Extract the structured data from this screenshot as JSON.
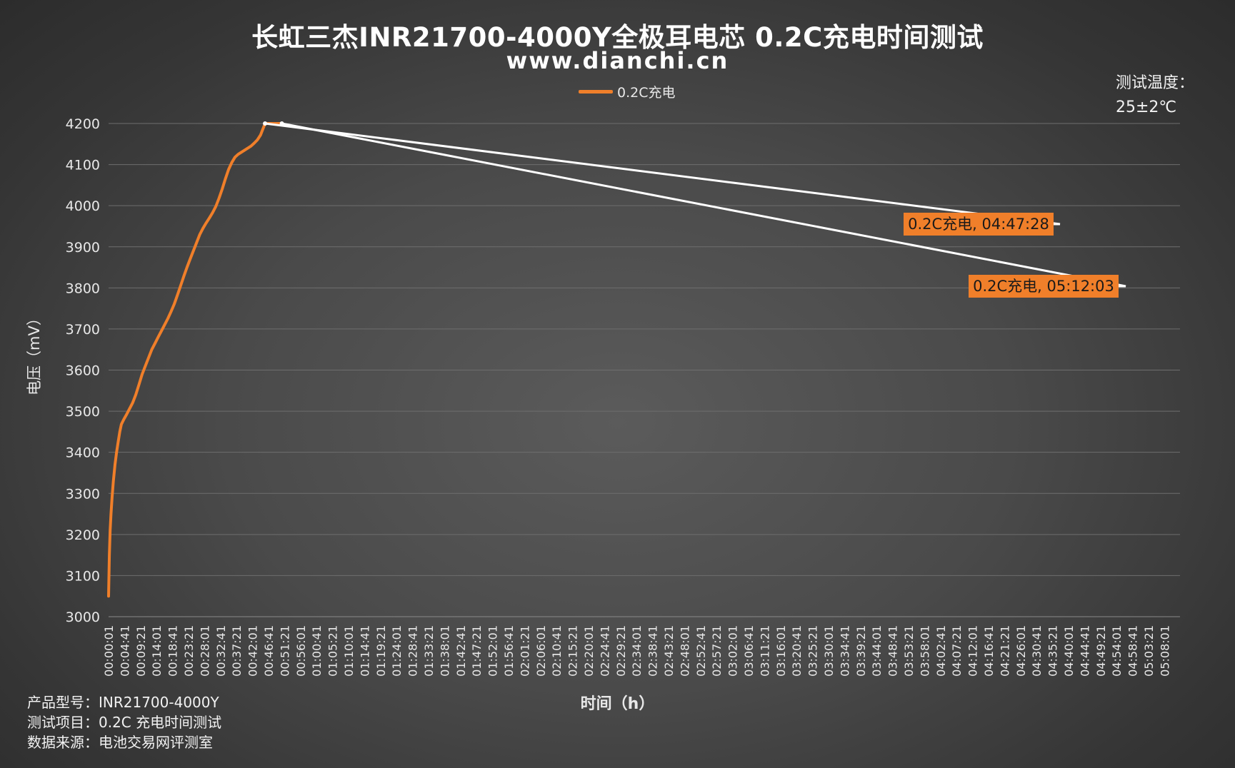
{
  "chart_data": {
    "type": "line",
    "title": "长虹三杰INR21700-4000Y全极耳电芯 0.2C充电时间测试",
    "subtitle": "www.dianchi.cn",
    "xlabel": "时间（h）",
    "ylabel": "电压（mV）",
    "ylim": [
      3000,
      4200
    ],
    "y_ticks": [
      "4200",
      "4100",
      "4000",
      "3900",
      "3800",
      "3700",
      "3600",
      "3500",
      "3400",
      "3300",
      "3200",
      "3100",
      "3000"
    ],
    "x_ticks": [
      "00:00:01",
      "00:04:41",
      "00:09:21",
      "00:14:01",
      "00:18:41",
      "00:23:21",
      "00:28:01",
      "00:32:41",
      "00:37:21",
      "00:42:01",
      "00:46:41",
      "00:51:21",
      "00:56:01",
      "01:00:41",
      "01:05:21",
      "01:10:01",
      "01:14:41",
      "01:19:21",
      "01:24:01",
      "01:28:41",
      "01:33:21",
      "01:38:01",
      "01:42:41",
      "01:47:21",
      "01:52:01",
      "01:56:41",
      "02:01:21",
      "02:06:01",
      "02:10:41",
      "02:15:21",
      "02:20:01",
      "02:24:41",
      "02:29:21",
      "02:34:01",
      "02:38:41",
      "02:43:21",
      "02:48:01",
      "02:52:41",
      "02:57:21",
      "03:02:01",
      "03:06:41",
      "03:11:21",
      "03:16:01",
      "03:20:41",
      "03:25:21",
      "03:30:01",
      "03:34:41",
      "03:39:21",
      "03:44:01",
      "03:48:41",
      "03:53:21",
      "03:58:01",
      "04:02:41",
      "04:07:21",
      "04:12:01",
      "04:16:41",
      "04:21:21",
      "04:26:01",
      "04:30:41",
      "04:35:21",
      "04:40:01",
      "04:44:41",
      "04:49:21",
      "04:54:01",
      "04:58:41",
      "05:03:21",
      "05:08:01"
    ],
    "grid": true,
    "legend_position": "top",
    "series": [
      {
        "name": "0.2C充电",
        "color": "#f07f2a",
        "points": [
          [
            0.0,
            3050
          ],
          [
            0.05,
            3150
          ],
          [
            0.1,
            3210
          ],
          [
            0.15,
            3250
          ],
          [
            0.22,
            3290
          ],
          [
            0.3,
            3330
          ],
          [
            0.4,
            3370
          ],
          [
            0.5,
            3400
          ],
          [
            0.6,
            3425
          ],
          [
            0.7,
            3450
          ],
          [
            0.8,
            3468
          ],
          [
            0.95,
            3480
          ],
          [
            1.1,
            3490
          ],
          [
            1.3,
            3505
          ],
          [
            1.5,
            3520
          ],
          [
            1.7,
            3540
          ],
          [
            1.9,
            3565
          ],
          [
            2.1,
            3590
          ],
          [
            2.3,
            3610
          ],
          [
            2.5,
            3630
          ],
          [
            2.7,
            3650
          ],
          [
            2.9,
            3665
          ],
          [
            3.1,
            3680
          ],
          [
            3.3,
            3695
          ],
          [
            3.5,
            3710
          ],
          [
            3.7,
            3725
          ],
          [
            3.9,
            3742
          ],
          [
            4.1,
            3760
          ],
          [
            4.3,
            3782
          ],
          [
            4.5,
            3805
          ],
          [
            4.7,
            3828
          ],
          [
            4.9,
            3850
          ],
          [
            5.1,
            3870
          ],
          [
            5.3,
            3890
          ],
          [
            5.5,
            3910
          ],
          [
            5.7,
            3930
          ],
          [
            5.9,
            3945
          ],
          [
            6.1,
            3958
          ],
          [
            6.3,
            3970
          ],
          [
            6.5,
            3983
          ],
          [
            6.7,
            3998
          ],
          [
            6.9,
            4018
          ],
          [
            7.1,
            4040
          ],
          [
            7.3,
            4065
          ],
          [
            7.5,
            4088
          ],
          [
            7.7,
            4105
          ],
          [
            7.9,
            4118
          ],
          [
            8.1,
            4125
          ],
          [
            8.3,
            4130
          ],
          [
            8.5,
            4135
          ],
          [
            8.7,
            4140
          ],
          [
            8.9,
            4145
          ],
          [
            9.1,
            4152
          ],
          [
            9.3,
            4160
          ],
          [
            9.5,
            4172
          ],
          [
            9.6,
            4182
          ],
          [
            9.7,
            4192
          ],
          [
            9.78,
            4200
          ],
          [
            10.0,
            4200
          ],
          [
            10.3,
            4200
          ],
          [
            10.6,
            4200
          ],
          [
            10.83,
            4200
          ]
        ]
      }
    ],
    "annotations": [
      {
        "label": "0.2C充电, 04:47:28",
        "x": 9.78,
        "y": 4200
      },
      {
        "label": "0.2C充电, 05:12:03",
        "x": 10.83,
        "y": 4200
      }
    ],
    "note_lines": [
      "测试温度：",
      "25±2℃"
    ],
    "footer_lines": [
      "产品型号：INR21700-4000Y",
      "测试项目：0.2C 充电时间测试",
      "数据来源：电池交易网评测室"
    ]
  }
}
